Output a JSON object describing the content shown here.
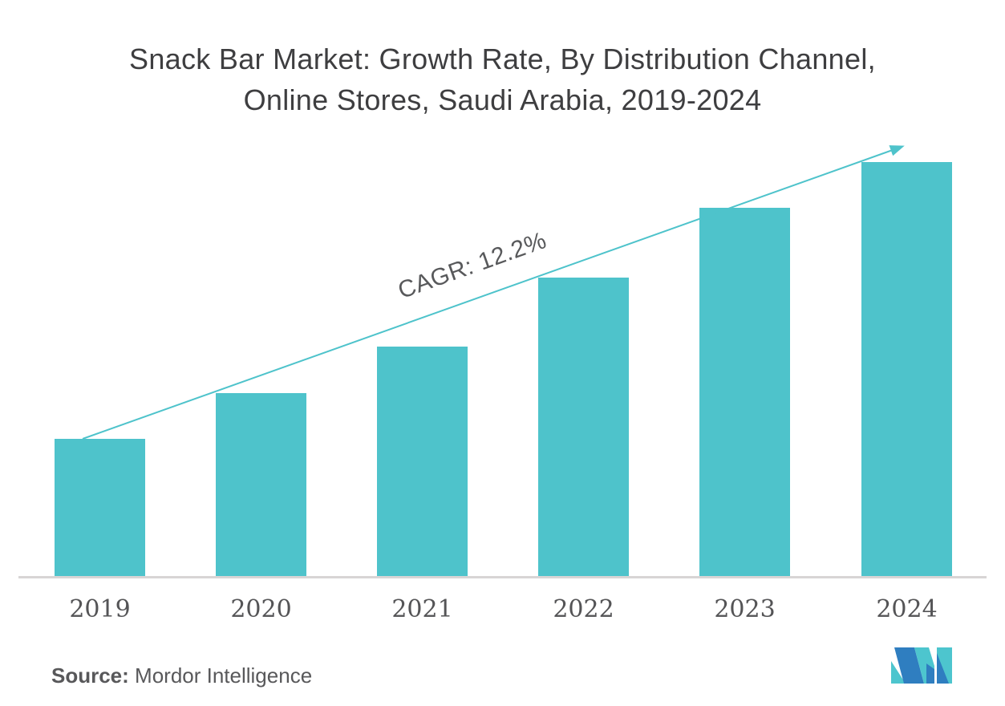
{
  "title": {
    "line1": "Snack Bar Market: Growth Rate, By Distribution Channel,",
    "line2": "Online Stores, Saudi Arabia, 2019-2024"
  },
  "annotation": {
    "cagr_label": "CAGR: 12.2%"
  },
  "source": {
    "prefix": "Source:",
    "text": " Mordor Intelligence"
  },
  "logo": {
    "name": "mordor-intelligence-logo",
    "blue": "#2F7EC0",
    "teal": "#4DC5CE"
  },
  "colors": {
    "bar": "#4EC3CB",
    "trend_line": "#4EC3CB",
    "title_text": "#3E3E40",
    "axis_label_text": "#545456",
    "baseline": "#D8D5D5",
    "background": "#FFFFFF"
  },
  "chart_data": {
    "type": "bar",
    "title": "Snack Bar Market: Growth Rate, By Distribution Channel, Online Stores, Saudi Arabia, 2019-2024",
    "categories": [
      "2019",
      "2020",
      "2021",
      "2022",
      "2023",
      "2024"
    ],
    "values": [
      33.1,
      44.2,
      55.4,
      72.1,
      88.9,
      100
    ],
    "values_note": "no y-axis shown; values are relative bar heights normalized to 2024 = 100",
    "cagr_percent": 12.2,
    "trend_arrow": true,
    "xlabel": "",
    "ylabel": "",
    "ylim": [
      0,
      100
    ],
    "grid": false,
    "legend": "none"
  }
}
